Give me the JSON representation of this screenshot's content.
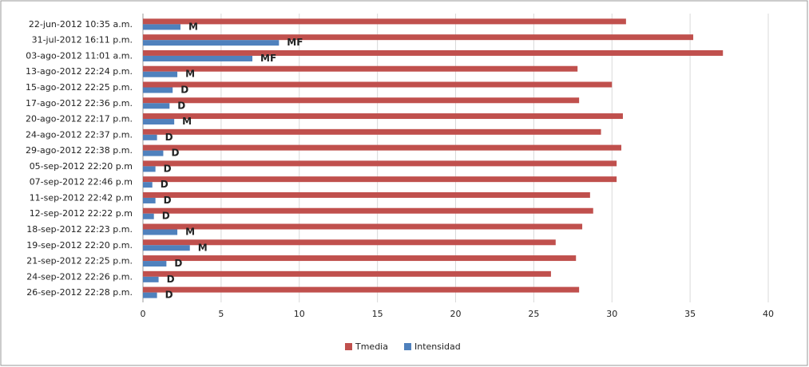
{
  "chart_data": {
    "type": "hbar",
    "categories": [
      "22-jun-2012 10:35 a.m.",
      "31-jul-2012 16:11 p.m.",
      "03-ago-2012 11:01 a.m.",
      "13-ago-2012 22:24 p.m.",
      "15-ago-2012 22:25 p.m.",
      "17-ago-2012 22:36 p.m.",
      "20-ago-2012 22:17 p.m.",
      "24-ago-2012 22:37 p.m.",
      "29-ago-2012 22:38 p.m.",
      "05-sep-2012 22:20 p.m",
      "07-sep-2012 22:46 p.m",
      "11-sep-2012 22:42 p.m",
      "12-sep-2012 22:22 p.m",
      "18-sep-2012 22:23 p.m.",
      "19-sep-2012 22:20 p.m.",
      "21-sep-2012 22:25 p.m.",
      "24-sep-2012 22:26 p.m.",
      "26-sep-2012 22:28 p.m."
    ],
    "series": [
      {
        "name": "Tmedia",
        "color": "#c0504d",
        "values": [
          30.9,
          35.2,
          37.1,
          27.8,
          30.0,
          27.9,
          30.7,
          29.3,
          30.6,
          30.3,
          30.3,
          28.6,
          28.8,
          28.1,
          26.4,
          27.7,
          26.1,
          27.9
        ]
      },
      {
        "name": "Intensidad",
        "color": "#4f81bd",
        "values": [
          2.4,
          8.7,
          7.0,
          2.2,
          1.9,
          1.7,
          2.0,
          0.9,
          1.3,
          0.8,
          0.6,
          0.8,
          0.7,
          2.2,
          3.0,
          1.5,
          1.0,
          0.9
        ],
        "annotations": [
          "M",
          "MF",
          "MF",
          "M",
          "D",
          "D",
          "M",
          "D",
          "D",
          "D",
          "D",
          "D",
          "D",
          "M",
          "M",
          "D",
          "D",
          "D"
        ]
      }
    ],
    "xlim": [
      0,
      40
    ],
    "xticks": [
      0,
      5,
      10,
      15,
      20,
      25,
      30,
      35,
      40
    ],
    "grid": true,
    "legend": "bottom"
  }
}
